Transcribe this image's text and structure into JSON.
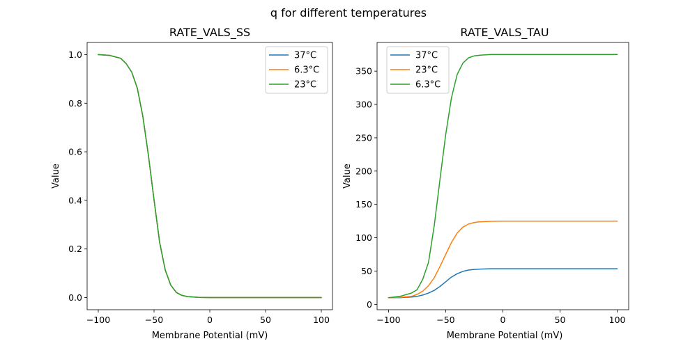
{
  "figure": {
    "suptitle": "q for different temperatures"
  },
  "chart_data": [
    {
      "type": "line",
      "title": "RATE_VALS_SS",
      "xlabel": "Membrane Potential (mV)",
      "ylabel": "Value",
      "xlim": [
        -110,
        110
      ],
      "ylim": [
        -0.05,
        1.05
      ],
      "xticks": [
        -100,
        -50,
        0,
        50,
        100
      ],
      "yticks": [
        0.0,
        0.2,
        0.4,
        0.6,
        0.8,
        1.0
      ],
      "ytick_labels": [
        "0.0",
        "0.2",
        "0.4",
        "0.6",
        "0.8",
        "1.0"
      ],
      "legend_position": "top-right",
      "x": [
        -100,
        -90,
        -80,
        -75,
        -70,
        -65,
        -60,
        -55,
        -50,
        -45,
        -40,
        -35,
        -30,
        -25,
        -20,
        -10,
        0,
        25,
        50,
        100
      ],
      "series": [
        {
          "name": "37°C",
          "color": "#1f77b4",
          "values": [
            1.0,
            0.997,
            0.985,
            0.963,
            0.928,
            0.862,
            0.745,
            0.584,
            0.402,
            0.228,
            0.114,
            0.051,
            0.021,
            0.009,
            0.004,
            0.001,
            0.0,
            0.0,
            0.0,
            0.0
          ]
        },
        {
          "name": "6.3°C",
          "color": "#ff7f0e",
          "values": [
            1.0,
            0.997,
            0.985,
            0.963,
            0.928,
            0.862,
            0.745,
            0.584,
            0.402,
            0.228,
            0.114,
            0.051,
            0.021,
            0.009,
            0.004,
            0.001,
            0.0,
            0.0,
            0.0,
            0.0
          ]
        },
        {
          "name": "23°C",
          "color": "#2ca02c",
          "values": [
            1.0,
            0.997,
            0.985,
            0.963,
            0.928,
            0.862,
            0.745,
            0.584,
            0.402,
            0.228,
            0.114,
            0.051,
            0.021,
            0.009,
            0.004,
            0.001,
            0.0,
            0.0,
            0.0,
            0.0
          ]
        }
      ]
    },
    {
      "type": "line",
      "title": "RATE_VALS_TAU",
      "xlabel": "Membrane Potential (mV)",
      "ylabel": "Value",
      "xlim": [
        -110,
        110
      ],
      "ylim": [
        -8,
        393
      ],
      "xticks": [
        -100,
        -50,
        0,
        50,
        100
      ],
      "yticks": [
        0,
        50,
        100,
        150,
        200,
        250,
        300,
        350
      ],
      "ytick_labels": [
        "0",
        "50",
        "100",
        "150",
        "200",
        "250",
        "300",
        "350"
      ],
      "legend_position": "top-left",
      "x": [
        -100,
        -90,
        -80,
        -75,
        -70,
        -65,
        -60,
        -55,
        -50,
        -45,
        -40,
        -35,
        -30,
        -25,
        -20,
        -10,
        0,
        25,
        50,
        100
      ],
      "series": [
        {
          "name": "37°C",
          "color": "#1f77b4",
          "values": [
            10,
            10.2,
            11,
            12,
            14,
            17,
            21,
            27,
            34,
            41,
            46,
            49.5,
            51.5,
            52.5,
            53,
            53.5,
            53.5,
            53.5,
            53.5,
            53.5
          ]
        },
        {
          "name": "23°C",
          "color": "#ff7f0e",
          "values": [
            10,
            10.5,
            12,
            15,
            20,
            28,
            40,
            57,
            75,
            93,
            107,
            116,
            120.5,
            123,
            124,
            124.6,
            124.8,
            124.8,
            124.8,
            124.8
          ]
        },
        {
          "name": "6.3°C",
          "color": "#2ca02c",
          "values": [
            10,
            12,
            17,
            22,
            38,
            63,
            118,
            188,
            255,
            310,
            345,
            362,
            370,
            373,
            374,
            375,
            375,
            375,
            375,
            375
          ]
        }
      ]
    }
  ]
}
